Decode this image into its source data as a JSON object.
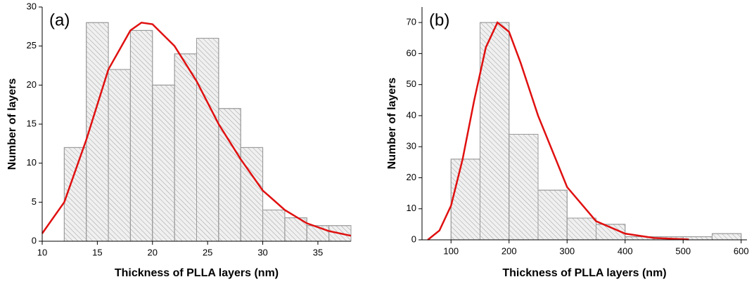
{
  "chart_data": [
    {
      "type": "histogram",
      "label": "(a)",
      "x_label": "Thickness of PLLA layers (nm)",
      "y_label": "Number of layers",
      "bins": [
        12,
        14,
        16,
        18,
        20,
        22,
        24,
        26,
        28,
        30,
        32,
        34,
        36,
        38
      ],
      "values": [
        12,
        28,
        22,
        27,
        20,
        24,
        26,
        17,
        12,
        4,
        3,
        2,
        2
      ],
      "color": "#f0f0f0",
      "fit": {
        "color": "#e01010",
        "x": [
          10,
          12,
          14,
          16,
          18,
          19,
          20,
          22,
          24,
          26,
          28,
          30,
          32,
          34,
          36,
          38
        ],
        "values": [
          1,
          5,
          13,
          22,
          27,
          28,
          27.8,
          25,
          20.5,
          15,
          10.5,
          6.5,
          4,
          2.3,
          1.3,
          0.7
        ]
      },
      "xlim": [
        10,
        38
      ],
      "ylim": [
        0,
        30
      ],
      "xticks": [
        10,
        15,
        20,
        25,
        30,
        35
      ],
      "yticks": [
        0,
        5,
        10,
        15,
        20,
        25,
        30
      ]
    },
    {
      "type": "histogram",
      "label": "(b)",
      "x_label": "Thickness of PLLA layers (nm)",
      "y_label": "Number of layers",
      "bins": [
        100,
        150,
        200,
        250,
        300,
        350,
        400,
        450,
        500,
        550,
        600
      ],
      "values": [
        26,
        70,
        34,
        16,
        7,
        5,
        1,
        1,
        1,
        2
      ],
      "color": "#f0f0f0",
      "fit": {
        "color": "#e01010",
        "x": [
          60,
          80,
          100,
          120,
          140,
          160,
          180,
          200,
          220,
          250,
          300,
          350,
          400,
          450,
          500,
          510
        ],
        "values": [
          0,
          3,
          11,
          26,
          45,
          62,
          70,
          67,
          57,
          40,
          17,
          6,
          2,
          0.6,
          0.2,
          0.1
        ]
      },
      "xlim": [
        50,
        610
      ],
      "ylim": [
        0,
        75
      ],
      "xticks": [
        100,
        200,
        300,
        400,
        500,
        600
      ],
      "yticks": [
        0,
        10,
        20,
        30,
        40,
        50,
        60,
        70
      ]
    }
  ]
}
